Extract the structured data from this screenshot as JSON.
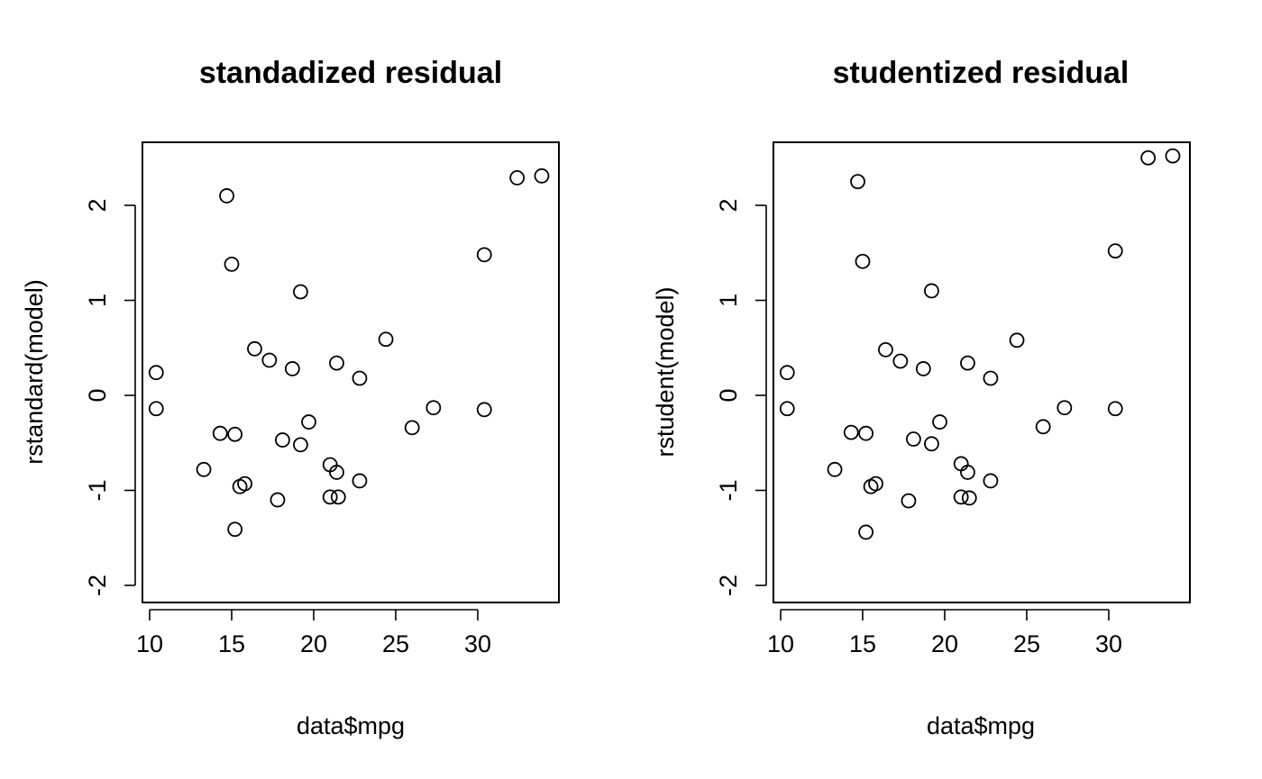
{
  "chart_data": [
    {
      "type": "scatter",
      "title": "standadized residual",
      "xlabel": "data$mpg",
      "ylabel": "rstandard(model)",
      "xlim": [
        10,
        35
      ],
      "ylim": [
        -2,
        2.5
      ],
      "xticks": [
        10,
        15,
        20,
        25,
        30
      ],
      "yticks": [
        -2,
        -1,
        0,
        1,
        2
      ],
      "grid": false,
      "x": [
        21.0,
        21.0,
        22.8,
        21.4,
        18.7,
        18.1,
        14.3,
        24.4,
        22.8,
        19.2,
        17.8,
        16.4,
        17.3,
        15.2,
        10.4,
        10.4,
        14.7,
        32.4,
        30.4,
        33.9,
        21.5,
        15.5,
        15.2,
        13.3,
        19.2,
        27.3,
        26.0,
        30.4,
        15.8,
        19.7,
        15.0,
        21.4
      ],
      "y": [
        -0.73,
        -1.07,
        -0.9,
        0.34,
        0.28,
        -0.47,
        -0.4,
        0.59,
        0.18,
        1.09,
        -1.1,
        0.49,
        0.37,
        -0.41,
        -0.14,
        0.24,
        2.1,
        2.29,
        1.48,
        2.31,
        -1.07,
        -0.96,
        -1.41,
        -0.78,
        -0.52,
        -0.13,
        -0.34,
        -0.15,
        -0.93,
        -0.28,
        1.38,
        -0.81
      ]
    },
    {
      "type": "scatter",
      "title": "studentized residual",
      "xlabel": "data$mpg",
      "ylabel": "rstudent(model)",
      "xlim": [
        10,
        35
      ],
      "ylim": [
        -2,
        2.5
      ],
      "xticks": [
        10,
        15,
        20,
        25,
        30
      ],
      "yticks": [
        -2,
        -1,
        0,
        1,
        2
      ],
      "grid": false,
      "x": [
        21.0,
        21.0,
        22.8,
        21.4,
        18.7,
        18.1,
        14.3,
        24.4,
        22.8,
        19.2,
        17.8,
        16.4,
        17.3,
        15.2,
        10.4,
        10.4,
        14.7,
        32.4,
        30.4,
        33.9,
        21.5,
        15.5,
        15.2,
        13.3,
        19.2,
        27.3,
        26.0,
        30.4,
        15.8,
        19.7,
        15.0,
        21.4
      ],
      "y": [
        -0.72,
        -1.07,
        -0.9,
        0.34,
        0.28,
        -0.46,
        -0.39,
        0.58,
        0.18,
        1.1,
        -1.11,
        0.48,
        0.36,
        -0.4,
        -0.14,
        0.24,
        2.25,
        2.5,
        1.52,
        2.52,
        -1.08,
        -0.96,
        -1.44,
        -0.78,
        -0.51,
        -0.13,
        -0.33,
        -0.14,
        -0.93,
        -0.28,
        1.41,
        -0.81
      ]
    }
  ]
}
